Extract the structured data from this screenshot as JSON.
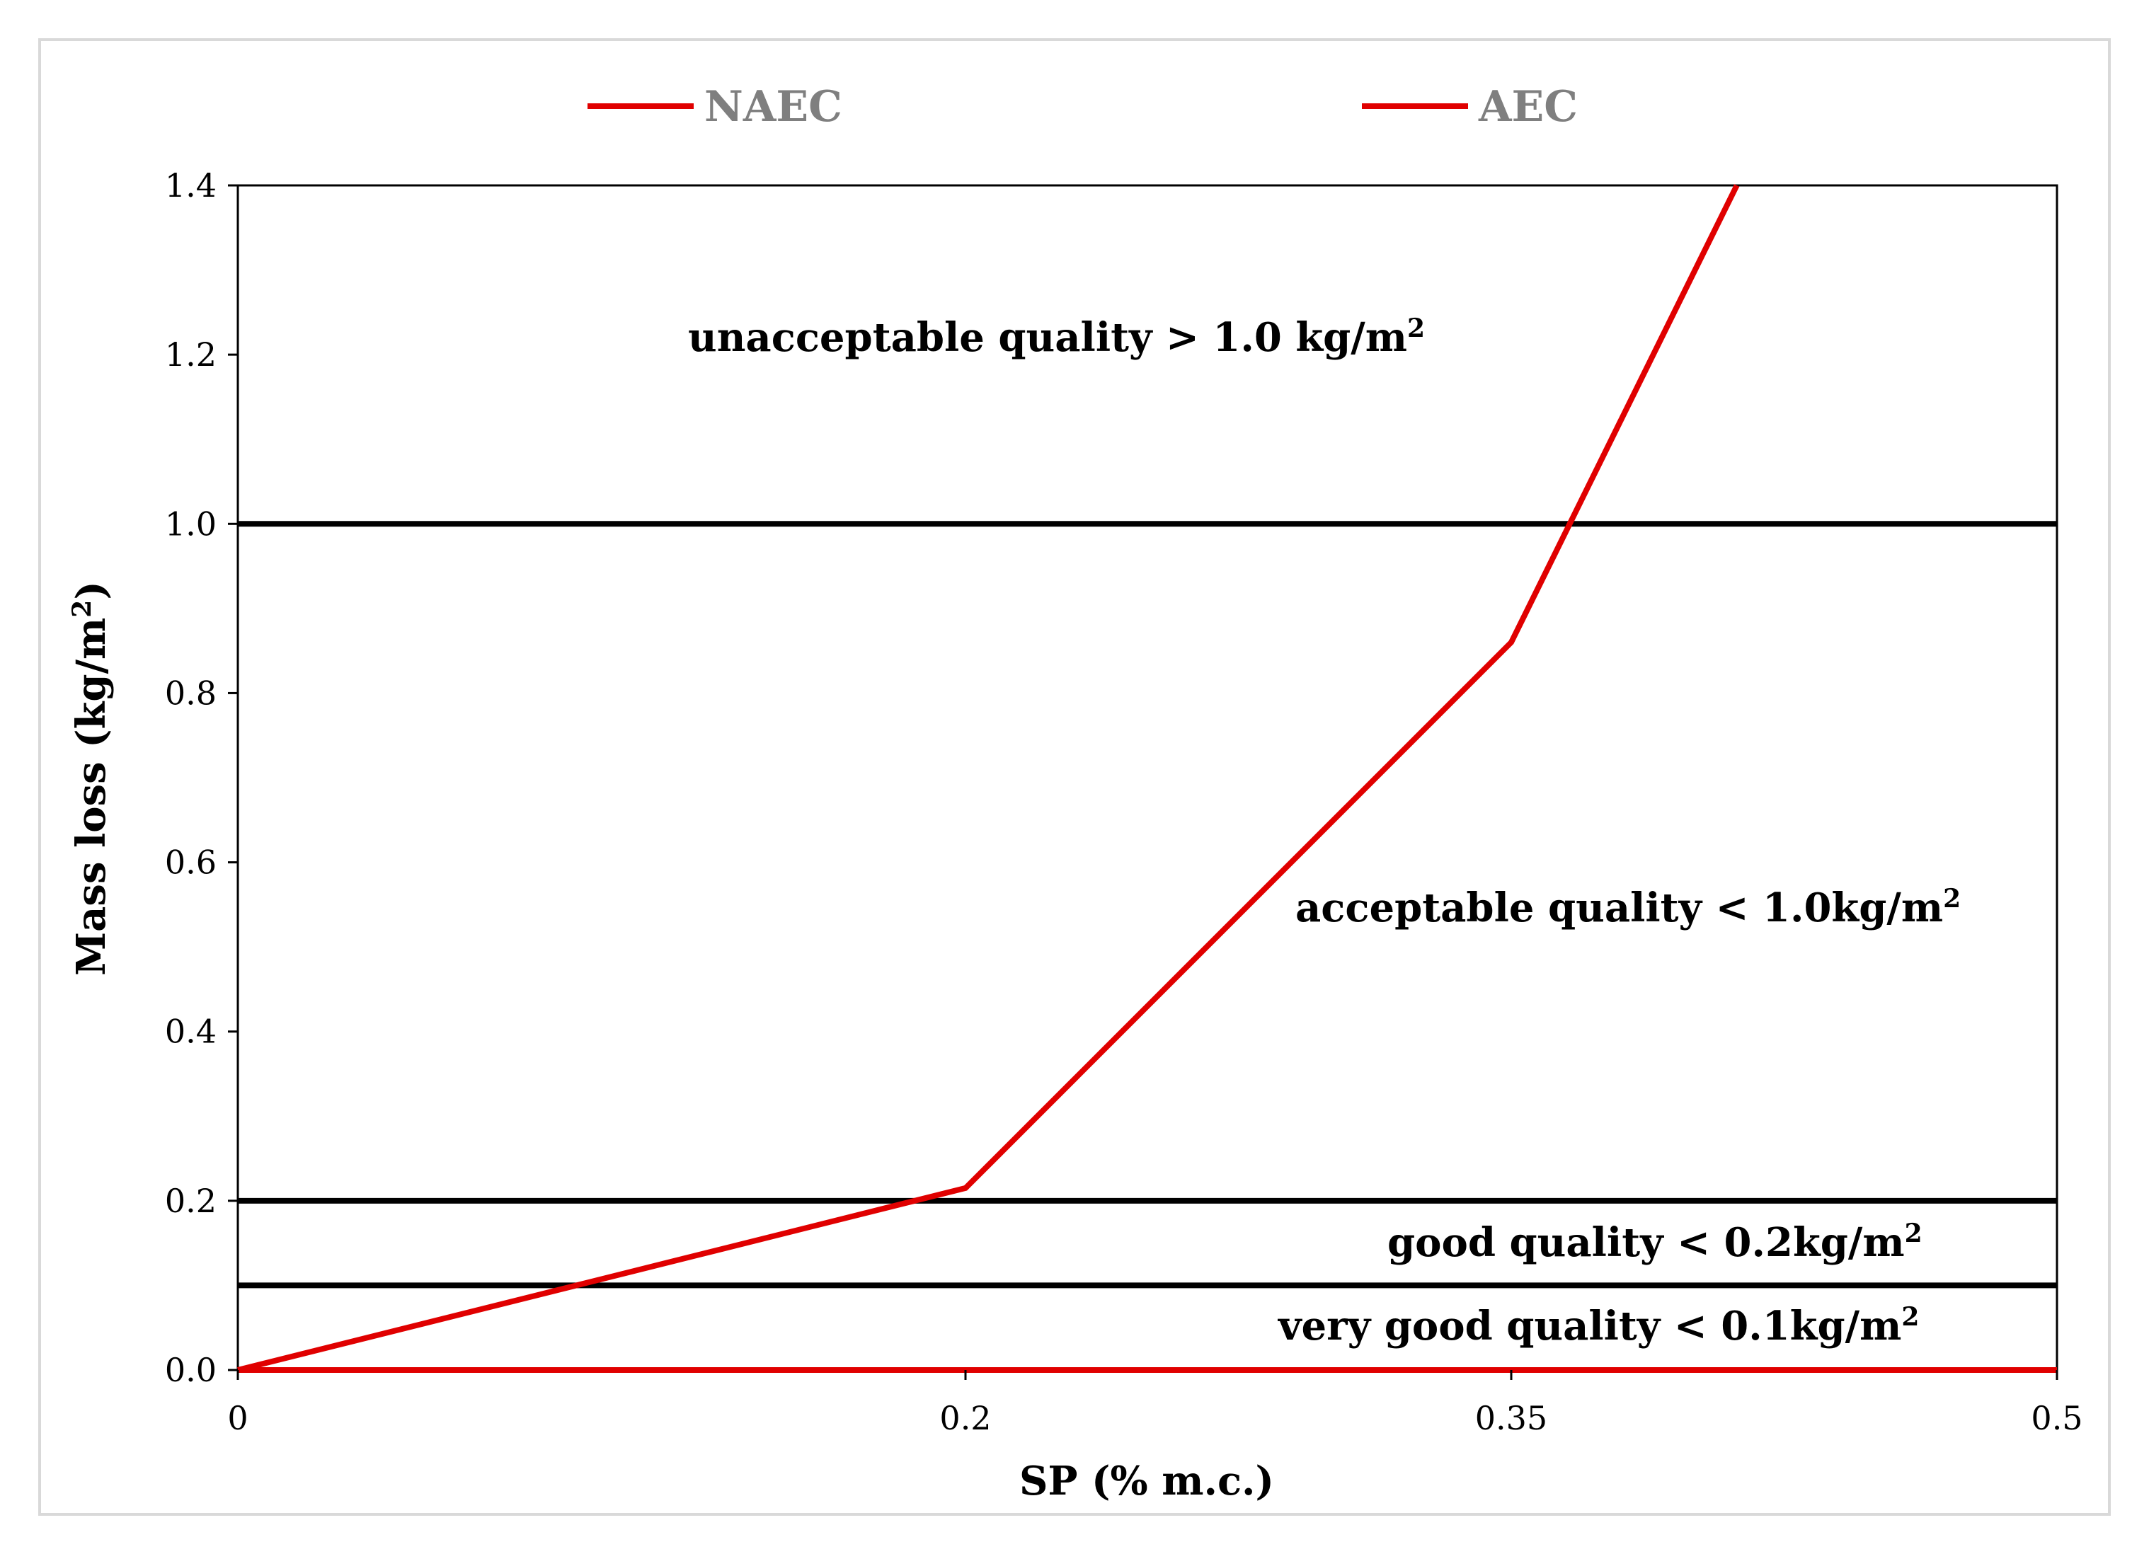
{
  "chart_data": {
    "type": "line",
    "title": "",
    "xlabel": "SP (% m.c.)",
    "ylabel_main": "Mass loss (kg/m",
    "ylabel_sup": "2",
    "ylabel_close": ")",
    "xlim": [
      0,
      0.5
    ],
    "ylim": [
      0,
      1.4
    ],
    "x_ticks": [
      {
        "value": 0,
        "label": "0"
      },
      {
        "value": 0.2,
        "label": "0.2"
      },
      {
        "value": 0.35,
        "label": "0.35"
      },
      {
        "value": 0.5,
        "label": "0.5"
      }
    ],
    "y_ticks": [
      {
        "value": 0.0,
        "label": "0.0"
      },
      {
        "value": 0.2,
        "label": "0.2"
      },
      {
        "value": 0.4,
        "label": "0.4"
      },
      {
        "value": 0.6,
        "label": "0.6"
      },
      {
        "value": 0.8,
        "label": "0.8"
      },
      {
        "value": 1.0,
        "label": "1.0"
      },
      {
        "value": 1.2,
        "label": "1.2"
      },
      {
        "value": 1.4,
        "label": "1.4"
      }
    ],
    "grid": false,
    "legend_position": "top",
    "series": [
      {
        "name": "NAEC",
        "color": "#e00000",
        "x": [
          0,
          0.2,
          0.35,
          0.412
        ],
        "y": [
          0,
          0.215,
          0.86,
          1.4
        ]
      },
      {
        "name": "AEC",
        "color": "#e00000",
        "x": [
          0,
          0.5
        ],
        "y": [
          0,
          0
        ]
      }
    ],
    "thresholds": [
      {
        "value": 1.0,
        "color": "#000000"
      },
      {
        "value": 0.2,
        "color": "#000000"
      },
      {
        "value": 0.1,
        "color": "#000000"
      }
    ],
    "annotations": [
      {
        "id": "unacceptable",
        "text": "unacceptable quality > 1.0 kg/m",
        "sup": "2"
      },
      {
        "id": "acceptable",
        "text": "acceptable quality < 1.0kg/m",
        "sup": "2"
      },
      {
        "id": "good",
        "text": "good quality < 0.2kg/m",
        "sup": "2"
      },
      {
        "id": "very-good",
        "text": "very good quality < 0.1kg/m",
        "sup": "2"
      }
    ]
  }
}
